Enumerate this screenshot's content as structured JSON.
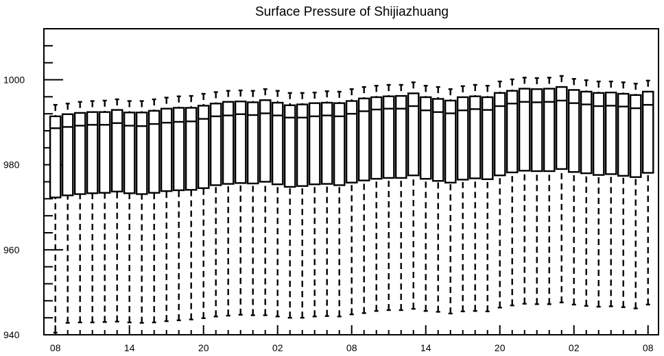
{
  "chart_data": {
    "type": "box",
    "title": "Surface Pressure of Shijiazhuang",
    "xlabel": "",
    "ylabel": "",
    "ylim": [
      940,
      1012
    ],
    "yticks": [
      940,
      960,
      980,
      1000
    ],
    "xtick_labels": [
      "08",
      "14",
      "20",
      "02",
      "08",
      "14",
      "20",
      "02",
      "08"
    ],
    "xtick_positions": [
      0,
      6,
      12,
      18,
      24,
      30,
      36,
      42,
      48
    ],
    "grid": false,
    "whisker_style": "dashed",
    "boxes": [
      {
        "x": 0,
        "min": 940.5,
        "q1": 972.3,
        "median": 988.6,
        "q3": 991.4,
        "max": 994.1
      },
      {
        "x": 1,
        "min": 942.8,
        "q1": 972.8,
        "median": 988.9,
        "q3": 991.9,
        "max": 994.4
      },
      {
        "x": 2,
        "min": 942.9,
        "q1": 973.1,
        "median": 989.2,
        "q3": 992.2,
        "max": 994.8
      },
      {
        "x": 3,
        "min": 942.9,
        "q1": 973.3,
        "median": 989.4,
        "q3": 992.4,
        "max": 995.0
      },
      {
        "x": 4,
        "min": 943.0,
        "q1": 973.4,
        "median": 989.4,
        "q3": 992.4,
        "max": 995.1
      },
      {
        "x": 5,
        "min": 943.1,
        "q1": 973.7,
        "median": 989.8,
        "q3": 992.9,
        "max": 995.4
      },
      {
        "x": 6,
        "min": 942.9,
        "q1": 973.3,
        "median": 989.2,
        "q3": 992.3,
        "max": 995.0
      },
      {
        "x": 7,
        "min": 942.8,
        "q1": 973.1,
        "median": 989.1,
        "q3": 992.3,
        "max": 995.0
      },
      {
        "x": 8,
        "min": 942.9,
        "q1": 973.4,
        "median": 989.6,
        "q3": 992.7,
        "max": 995.4
      },
      {
        "x": 9,
        "min": 943.2,
        "q1": 973.8,
        "median": 989.9,
        "q3": 993.2,
        "max": 995.8
      },
      {
        "x": 10,
        "min": 943.4,
        "q1": 974.0,
        "median": 990.1,
        "q3": 993.4,
        "max": 996.1
      },
      {
        "x": 11,
        "min": 943.6,
        "q1": 974.1,
        "median": 990.2,
        "q3": 993.4,
        "max": 996.2
      },
      {
        "x": 12,
        "min": 943.9,
        "q1": 974.5,
        "median": 990.8,
        "q3": 993.9,
        "max": 996.7
      },
      {
        "x": 13,
        "min": 944.3,
        "q1": 975.2,
        "median": 991.4,
        "q3": 994.4,
        "max": 997.1
      },
      {
        "x": 14,
        "min": 944.5,
        "q1": 975.5,
        "median": 991.6,
        "q3": 994.8,
        "max": 997.4
      },
      {
        "x": 15,
        "min": 944.7,
        "q1": 975.7,
        "median": 991.9,
        "q3": 994.9,
        "max": 997.5
      },
      {
        "x": 16,
        "min": 944.6,
        "q1": 975.6,
        "median": 991.7,
        "q3": 994.7,
        "max": 997.4
      },
      {
        "x": 17,
        "min": 944.6,
        "q1": 976.0,
        "median": 992.1,
        "q3": 995.2,
        "max": 997.8
      },
      {
        "x": 18,
        "min": 944.3,
        "q1": 975.4,
        "median": 991.6,
        "q3": 994.6,
        "max": 997.4
      },
      {
        "x": 19,
        "min": 944.0,
        "q1": 974.8,
        "median": 991.1,
        "q3": 994.0,
        "max": 996.9
      },
      {
        "x": 20,
        "min": 944.0,
        "q1": 975.0,
        "median": 991.1,
        "q3": 994.2,
        "max": 996.9
      },
      {
        "x": 21,
        "min": 944.3,
        "q1": 975.4,
        "median": 991.4,
        "q3": 994.5,
        "max": 997.0
      },
      {
        "x": 22,
        "min": 944.4,
        "q1": 975.5,
        "median": 991.6,
        "q3": 994.6,
        "max": 997.3
      },
      {
        "x": 23,
        "min": 944.3,
        "q1": 975.2,
        "median": 991.4,
        "q3": 994.5,
        "max": 997.2
      },
      {
        "x": 24,
        "min": 944.8,
        "q1": 975.8,
        "median": 992.0,
        "q3": 995.0,
        "max": 997.8
      },
      {
        "x": 25,
        "min": 945.1,
        "q1": 976.3,
        "median": 992.6,
        "q3": 995.6,
        "max": 998.3
      },
      {
        "x": 26,
        "min": 945.6,
        "q1": 976.7,
        "median": 993.0,
        "q3": 995.9,
        "max": 998.6
      },
      {
        "x": 27,
        "min": 945.8,
        "q1": 976.9,
        "median": 993.2,
        "q3": 996.1,
        "max": 998.8
      },
      {
        "x": 28,
        "min": 945.8,
        "q1": 976.9,
        "median": 993.2,
        "q3": 996.2,
        "max": 998.8
      },
      {
        "x": 29,
        "min": 946.1,
        "q1": 977.5,
        "median": 993.8,
        "q3": 996.8,
        "max": 999.4
      },
      {
        "x": 30,
        "min": 945.6,
        "q1": 976.7,
        "median": 992.8,
        "q3": 995.9,
        "max": 998.6
      },
      {
        "x": 31,
        "min": 945.4,
        "q1": 976.2,
        "median": 992.4,
        "q3": 995.5,
        "max": 998.3
      },
      {
        "x": 32,
        "min": 945.0,
        "q1": 975.8,
        "median": 992.1,
        "q3": 995.1,
        "max": 997.8
      },
      {
        "x": 33,
        "min": 945.5,
        "q1": 976.5,
        "median": 992.8,
        "q3": 995.9,
        "max": 998.5
      },
      {
        "x": 34,
        "min": 945.6,
        "q1": 976.8,
        "median": 993.1,
        "q3": 996.1,
        "max": 998.8
      },
      {
        "x": 35,
        "min": 945.5,
        "q1": 976.6,
        "median": 992.9,
        "q3": 995.9,
        "max": 998.6
      },
      {
        "x": 36,
        "min": 946.4,
        "q1": 977.5,
        "median": 993.8,
        "q3": 996.9,
        "max": 999.6
      },
      {
        "x": 37,
        "min": 946.9,
        "q1": 978.2,
        "median": 994.4,
        "q3": 997.4,
        "max": 1000.1
      },
      {
        "x": 38,
        "min": 947.3,
        "q1": 978.6,
        "median": 994.8,
        "q3": 997.9,
        "max": 1000.5
      },
      {
        "x": 39,
        "min": 947.2,
        "q1": 978.5,
        "median": 994.7,
        "q3": 997.8,
        "max": 1000.4
      },
      {
        "x": 40,
        "min": 947.2,
        "q1": 978.5,
        "median": 994.8,
        "q3": 997.9,
        "max": 1000.5
      },
      {
        "x": 41,
        "min": 947.6,
        "q1": 979.0,
        "median": 995.1,
        "q3": 998.3,
        "max": 1000.9
      },
      {
        "x": 42,
        "min": 947.1,
        "q1": 978.3,
        "median": 994.5,
        "q3": 997.6,
        "max": 1000.2
      },
      {
        "x": 43,
        "min": 946.8,
        "q1": 978.0,
        "median": 994.2,
        "q3": 997.2,
        "max": 999.9
      },
      {
        "x": 44,
        "min": 946.6,
        "q1": 977.6,
        "median": 993.8,
        "q3": 996.9,
        "max": 999.6
      },
      {
        "x": 45,
        "min": 946.7,
        "q1": 977.8,
        "median": 993.9,
        "q3": 997.0,
        "max": 999.6
      },
      {
        "x": 46,
        "min": 946.5,
        "q1": 977.4,
        "median": 993.7,
        "q3": 996.7,
        "max": 999.4
      },
      {
        "x": 47,
        "min": 946.2,
        "q1": 977.1,
        "median": 993.3,
        "q3": 996.4,
        "max": 999.1
      },
      {
        "x": 48,
        "min": 947.1,
        "q1": 978.1,
        "median": 994.1,
        "q3": 997.2,
        "max": 999.8
      }
    ]
  }
}
